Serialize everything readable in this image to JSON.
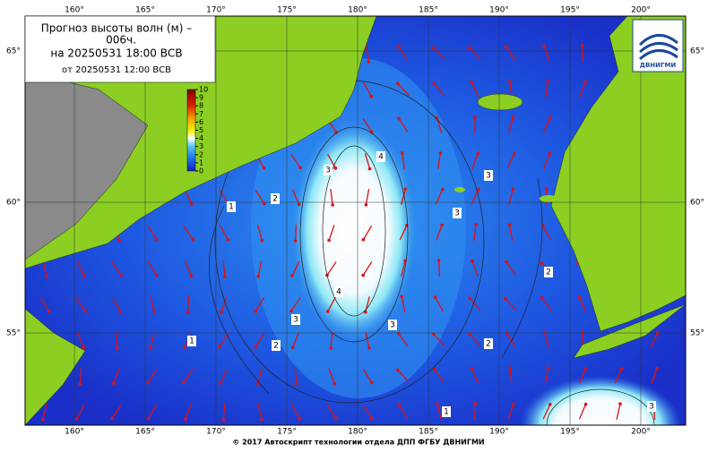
{
  "title_box": {
    "line1": "Прогноз высоты волн (м) –",
    "line2": "006ч.",
    "line3": "на 20250531 18:00 ВСВ",
    "line4": "от 20250531 12:00 ВСВ"
  },
  "colorbar": {
    "ticks": [
      0,
      1,
      2,
      3,
      4,
      5,
      6,
      7,
      8,
      9,
      10
    ]
  },
  "graticule": {
    "longitudes": [
      "160°",
      "165°",
      "170°",
      "175°",
      "180°",
      "185°",
      "190°",
      "195°",
      "200°"
    ],
    "latitudes": [
      "65°",
      "60°",
      "55°"
    ]
  },
  "contour_labels": [
    "1",
    "2",
    "3",
    "4"
  ],
  "logo": "ДВНИГМИ",
  "footer": "© 2017 Автоскрипт технологии отдела ДПП ФГБУ ДВНИГМИ"
}
